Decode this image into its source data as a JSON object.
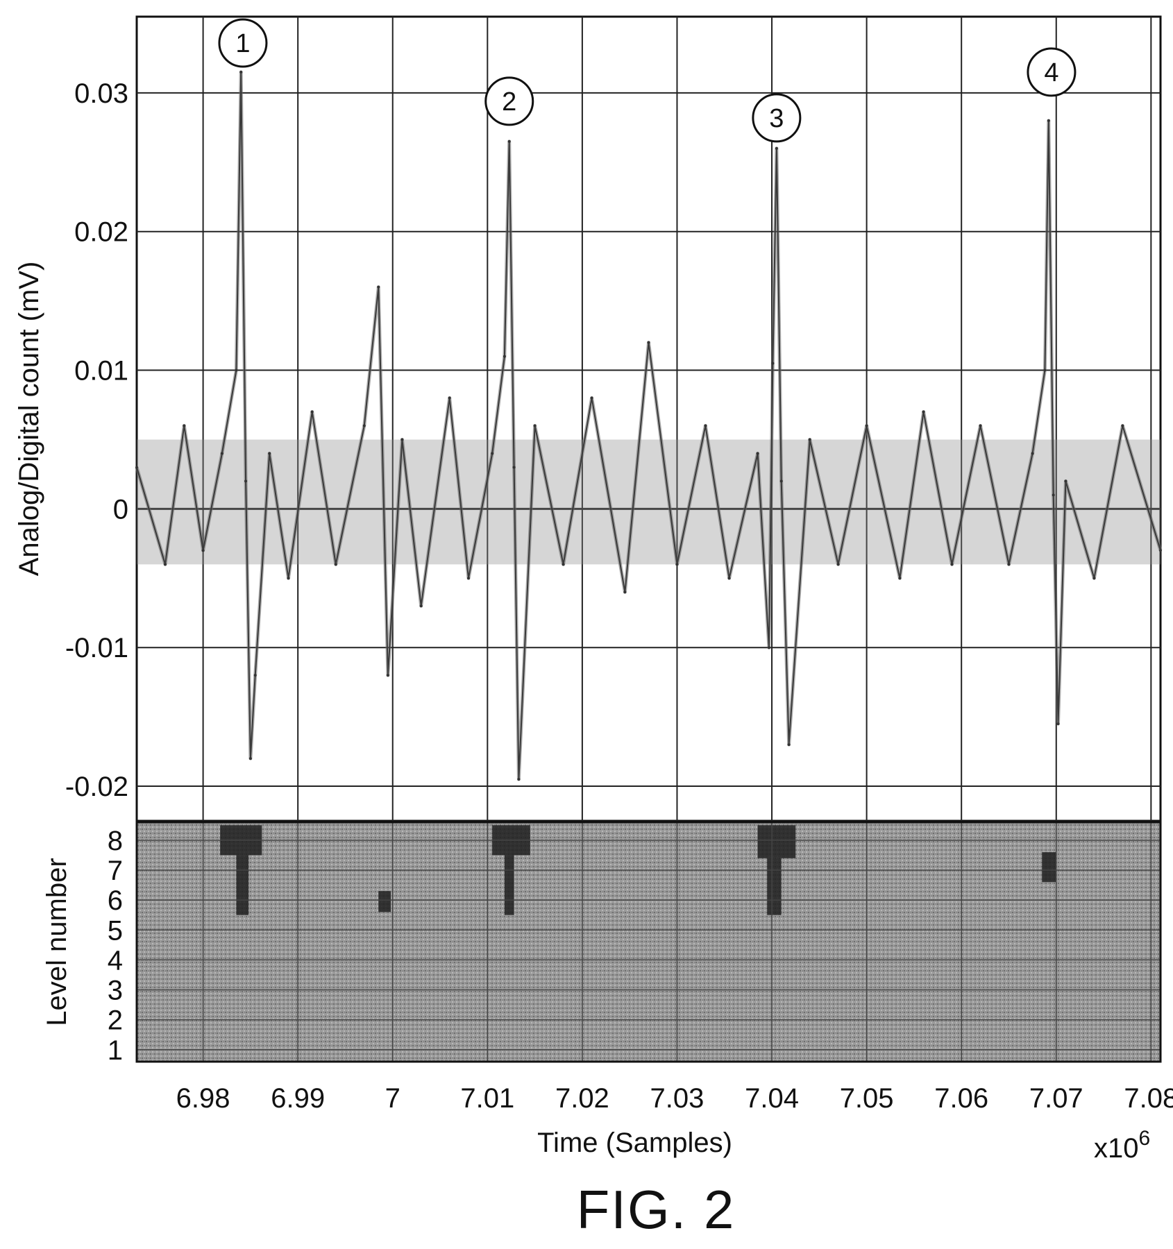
{
  "chart_data": [
    {
      "type": "line",
      "xlabel": "Time (Samples)",
      "ylabel": "Analog/Digital count (mV)",
      "x_multiplier": "x10",
      "x_multiplier_exp": "6",
      "xlim": [
        6.973,
        7.081
      ],
      "ylim": [
        -0.0225,
        0.0355
      ],
      "grid": true,
      "x_ticks": [
        6.98,
        6.99,
        7.0,
        7.01,
        7.02,
        7.03,
        7.04,
        7.05,
        7.06,
        7.07,
        7.08
      ],
      "x_tick_labels": [
        "6.98",
        "6.99",
        "7",
        "7.01",
        "7.02",
        "7.03",
        "7.04",
        "7.05",
        "7.06",
        "7.07",
        "7.08"
      ],
      "y_ticks": [
        -0.02,
        -0.01,
        0,
        0.01,
        0.02,
        0.03
      ],
      "y_tick_labels": [
        "-0.02",
        "-0.01",
        "0",
        "0.01",
        "0.02",
        "0.03"
      ],
      "series": [
        {
          "x": [
            6.973,
            6.976,
            6.978,
            6.98,
            6.982,
            6.9835,
            6.984,
            6.9845,
            6.985,
            6.9855,
            6.987,
            6.989,
            6.9915,
            6.994,
            6.997,
            6.9985,
            6.9995,
            7.001,
            7.003,
            7.006,
            7.008,
            7.0105,
            7.0118,
            7.0123,
            7.0128,
            7.0133,
            7.015,
            7.018,
            7.021,
            7.0245,
            7.027,
            7.03,
            7.033,
            7.0355,
            7.0385,
            7.0397,
            7.0401,
            7.0405,
            7.041,
            7.0418,
            7.044,
            7.047,
            7.05,
            7.0535,
            7.056,
            7.059,
            7.062,
            7.065,
            7.0675,
            7.0688,
            7.0692,
            7.0697,
            7.0702,
            7.071,
            7.074,
            7.077,
            7.081
          ],
          "y": [
            0.003,
            -0.004,
            0.006,
            -0.003,
            0.004,
            0.01,
            0.0315,
            0.002,
            -0.018,
            -0.012,
            0.004,
            -0.005,
            0.007,
            -0.004,
            0.006,
            0.016,
            -0.012,
            0.005,
            -0.007,
            0.008,
            -0.005,
            0.004,
            0.011,
            0.0265,
            0.003,
            -0.0195,
            0.006,
            -0.004,
            0.008,
            -0.006,
            0.012,
            -0.004,
            0.006,
            -0.005,
            0.004,
            -0.01,
            0.0105,
            0.026,
            0.002,
            -0.017,
            0.005,
            -0.004,
            0.006,
            -0.005,
            0.007,
            -0.004,
            0.006,
            -0.004,
            0.004,
            0.01,
            0.028,
            0.001,
            -0.0155,
            0.002,
            -0.005,
            0.006,
            -0.003
          ]
        }
      ],
      "annotations": [
        {
          "text": "1",
          "x": 6.9842,
          "y": 0.0336
        },
        {
          "text": "2",
          "x": 7.0123,
          "y": 0.0294
        },
        {
          "text": "3",
          "x": 7.0405,
          "y": 0.0282
        },
        {
          "text": "4",
          "x": 7.0695,
          "y": 0.0315
        }
      ]
    },
    {
      "type": "heatmap",
      "ylabel": "Level number",
      "xlim": [
        6.973,
        7.081
      ],
      "ylim": [
        0.6,
        8.6
      ],
      "y_ticks": [
        1,
        2,
        3,
        4,
        5,
        6,
        7,
        8
      ],
      "y_tick_labels": [
        "1",
        "2",
        "3",
        "4",
        "5",
        "6",
        "7",
        "8"
      ],
      "grid": true,
      "dark_regions": [
        {
          "x": [
            6.9818,
            6.9862
          ],
          "level": [
            7.5,
            8.5
          ]
        },
        {
          "x": [
            6.9835,
            6.9848
          ],
          "level": [
            5.5,
            7.5
          ]
        },
        {
          "x": [
            6.9985,
            6.9998
          ],
          "level": [
            5.6,
            6.3
          ]
        },
        {
          "x": [
            7.0105,
            7.0145
          ],
          "level": [
            7.5,
            8.5
          ]
        },
        {
          "x": [
            7.0118,
            7.0128
          ],
          "level": [
            5.5,
            7.5
          ]
        },
        {
          "x": [
            7.0385,
            7.0425
          ],
          "level": [
            7.4,
            8.5
          ]
        },
        {
          "x": [
            7.0395,
            7.041
          ],
          "level": [
            5.5,
            7.4
          ]
        },
        {
          "x": [
            7.0685,
            7.07
          ],
          "level": [
            6.6,
            7.6
          ]
        }
      ]
    }
  ],
  "caption": "FIG. 2"
}
